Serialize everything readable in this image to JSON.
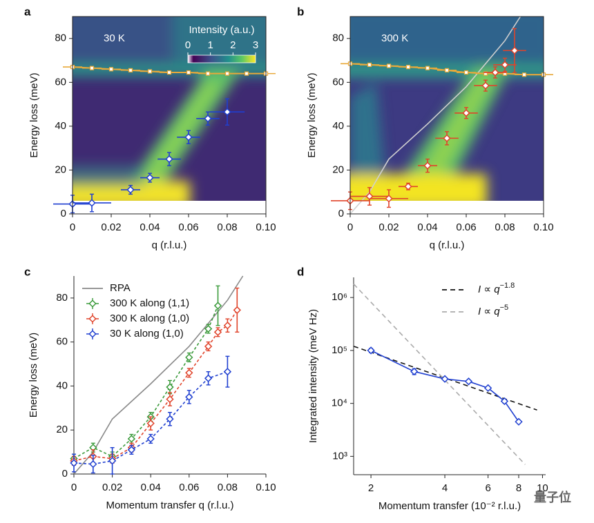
{
  "chart_data": [
    {
      "type": "heatmap",
      "label": "a",
      "annotation": "30 K",
      "x_label": "q (r.l.u.)",
      "y_label": "Energy loss (meV)",
      "xlim": [
        0,
        0.1
      ],
      "ylim": [
        0,
        90
      ],
      "xticks": [
        0,
        0.02,
        0.04,
        0.06,
        0.08,
        {
          "value": 0.1,
          "label": "0.10"
        }
      ],
      "yticks": [
        0,
        20,
        40,
        60,
        80
      ],
      "colorbar": {
        "label": "Intensity (a.u.)",
        "lim": [
          0,
          3
        ],
        "ticks": [
          0,
          1,
          2,
          3
        ]
      },
      "series": [
        {
          "color": "#e8a93a",
          "marker": "square",
          "line": true,
          "x": [
            0,
            0.01,
            0.02,
            0.03,
            0.04,
            0.05,
            0.06,
            0.07,
            0.08,
            0.09,
            0.1
          ],
          "values": [
            67,
            66.5,
            66,
            65.5,
            65,
            64.5,
            64.5,
            64,
            64,
            64,
            64
          ],
          "xerr": [
            0.005,
            0.005,
            0.005,
            0.005,
            0.005,
            0.005,
            0.005,
            0.005,
            0.005,
            0.005,
            0.005
          ]
        },
        {
          "color": "#1f3fd0",
          "marker": "diamond",
          "x": [
            0,
            0.01,
            0.03,
            0.04,
            0.05,
            0.06,
            0.07,
            0.08
          ],
          "values": [
            4.5,
            5,
            11,
            16.5,
            25,
            35,
            43.5,
            46.5
          ],
          "xerr": [
            0.01,
            0.01,
            0.005,
            0.005,
            0.006,
            0.006,
            0.006,
            0.009
          ],
          "yerr": [
            4,
            4,
            2,
            2,
            3,
            3,
            3,
            6
          ]
        }
      ]
    },
    {
      "type": "heatmap",
      "label": "b",
      "annotation": "300 K",
      "x_label": "q (r.l.u.)",
      "y_label": "Energy loss (meV)",
      "xlim": [
        0,
        0.1
      ],
      "ylim": [
        0,
        90
      ],
      "xticks": [
        0,
        0.02,
        0.04,
        0.06,
        0.08,
        {
          "value": 0.1,
          "label": "0.10"
        }
      ],
      "yticks": [
        0,
        20,
        40,
        60,
        80
      ],
      "series": [
        {
          "color": "#d0d0d0",
          "line": true,
          "x": [
            0,
            0.01,
            0.02,
            0.04,
            0.06,
            0.08,
            0.088
          ],
          "values": [
            0,
            10,
            25,
            41,
            58,
            79,
            90
          ]
        },
        {
          "color": "#e8a93a",
          "marker": "square",
          "line": true,
          "x": [
            0,
            0.01,
            0.02,
            0.03,
            0.04,
            0.05,
            0.06,
            0.07,
            0.08,
            0.09,
            0.1
          ],
          "values": [
            68.5,
            68,
            67.5,
            67,
            66.5,
            65.5,
            64.5,
            64,
            64,
            63.5,
            63.5
          ],
          "xerr": [
            0.005,
            0.005,
            0.005,
            0.005,
            0.005,
            0.005,
            0.005,
            0.005,
            0.005,
            0.005,
            0.005
          ]
        },
        {
          "color": "#e0432a",
          "marker": "diamond",
          "x": [
            0,
            0.01,
            0.02,
            0.03,
            0.04,
            0.05,
            0.06,
            0.07,
            0.075,
            0.08,
            0.085
          ],
          "values": [
            6,
            8,
            7,
            12.5,
            22,
            34.5,
            46,
            58.5,
            64.5,
            68,
            74.5
          ],
          "xerr": [
            0.01,
            0.01,
            0.01,
            0.005,
            0.005,
            0.006,
            0.006,
            0.006,
            0.006,
            0.006,
            0.006
          ],
          "yerr": [
            4,
            4,
            4,
            1.5,
            3,
            3,
            2.5,
            2.5,
            2.5,
            3,
            10
          ]
        }
      ]
    },
    {
      "type": "errorbar",
      "label": "c",
      "legend": "upper left",
      "x_label": "Momentum transfer q (r.l.u.)",
      "y_label": "Energy loss (meV)",
      "xlim": [
        0,
        0.1
      ],
      "ylim": [
        0,
        90
      ],
      "xticks": [
        0,
        0.02,
        0.04,
        0.06,
        0.08,
        {
          "value": 0.1,
          "label": "0.10"
        }
      ],
      "yticks": [
        0,
        20,
        40,
        60,
        80
      ],
      "series": [
        {
          "name": "RPA",
          "color": "#888888",
          "line": true,
          "x": [
            0,
            0.01,
            0.02,
            0.04,
            0.06,
            0.08,
            0.088
          ],
          "values": [
            0,
            10,
            25,
            41,
            58,
            79,
            90
          ]
        },
        {
          "name": "300 K along (1,1)",
          "color": "#3a9a3a",
          "marker": "diamond",
          "line": true,
          "dash": true,
          "x": [
            0,
            0.01,
            0.02,
            0.03,
            0.04,
            0.05,
            0.06,
            0.07,
            0.075
          ],
          "values": [
            7,
            12,
            8,
            16,
            26,
            39.5,
            53,
            66,
            76.5
          ],
          "yerr": [
            2,
            2,
            2,
            2,
            2,
            3,
            2,
            2,
            9
          ]
        },
        {
          "name": "300 K along (1,0)",
          "color": "#e0432a",
          "marker": "diamond",
          "line": true,
          "dash": true,
          "x": [
            0,
            0.01,
            0.02,
            0.03,
            0.04,
            0.05,
            0.06,
            0.07,
            0.075,
            0.08,
            0.085
          ],
          "values": [
            6,
            8,
            7,
            12,
            23,
            34,
            46,
            58,
            64.5,
            67.5,
            74.5
          ],
          "yerr": [
            2,
            3,
            2,
            2,
            3,
            3,
            2,
            2,
            2,
            3,
            10
          ]
        },
        {
          "name": "30 K along (1,0)",
          "color": "#1f3fd0",
          "marker": "diamond",
          "line": true,
          "dash": true,
          "x": [
            0,
            0.01,
            0.02,
            0.03,
            0.04,
            0.05,
            0.06,
            0.07,
            0.08
          ],
          "values": [
            5,
            4.5,
            6,
            11,
            16,
            25,
            35,
            43.5,
            46.5
          ],
          "yerr": [
            4,
            4,
            6,
            2,
            2,
            3,
            3,
            3,
            7
          ]
        }
      ]
    },
    {
      "type": "line",
      "label": "d",
      "legend": "upper right",
      "xscale": "log",
      "yscale": "log",
      "x_label": "Momentum transfer (10⁻² r.l.u.)",
      "y_label": "Integrated intensity (meV Hz)",
      "xlim": [
        1.7,
        10.3
      ],
      "ylim": [
        450,
        2400000
      ],
      "xticks": [
        2,
        4,
        6,
        8,
        10
      ],
      "yticks": [
        {
          "value": 1000,
          "label": "10³"
        },
        {
          "value": 10000,
          "label": "10⁴"
        },
        {
          "value": 100000,
          "label": "10⁵"
        },
        {
          "value": 1000000,
          "label": "10⁶"
        }
      ],
      "series": [
        {
          "name": "I ∝ q",
          "name_sup": "−1.8",
          "color": "#111111",
          "line": true,
          "dash": true,
          "x": [
            1.7,
            9.5
          ],
          "values": [
            120000,
            7500
          ]
        },
        {
          "name": "I ∝ q",
          "name_sup": "−5",
          "color": "#aaaaaa",
          "line": true,
          "dash": true,
          "x": [
            1.7,
            8.5
          ],
          "values": [
            1800000,
            700
          ]
        },
        {
          "color": "#1f3fd0",
          "marker": "diamond",
          "line": true,
          "x": [
            2,
            3,
            4,
            5,
            6,
            7,
            8
          ],
          "values": [
            100000,
            40000,
            29000,
            26000,
            19500,
            11000,
            4500
          ],
          "yerr": [
            9000,
            5000,
            1500,
            1200,
            1000,
            800,
            300
          ]
        }
      ]
    },
    {
      "watermark": "量子位"
    }
  ]
}
